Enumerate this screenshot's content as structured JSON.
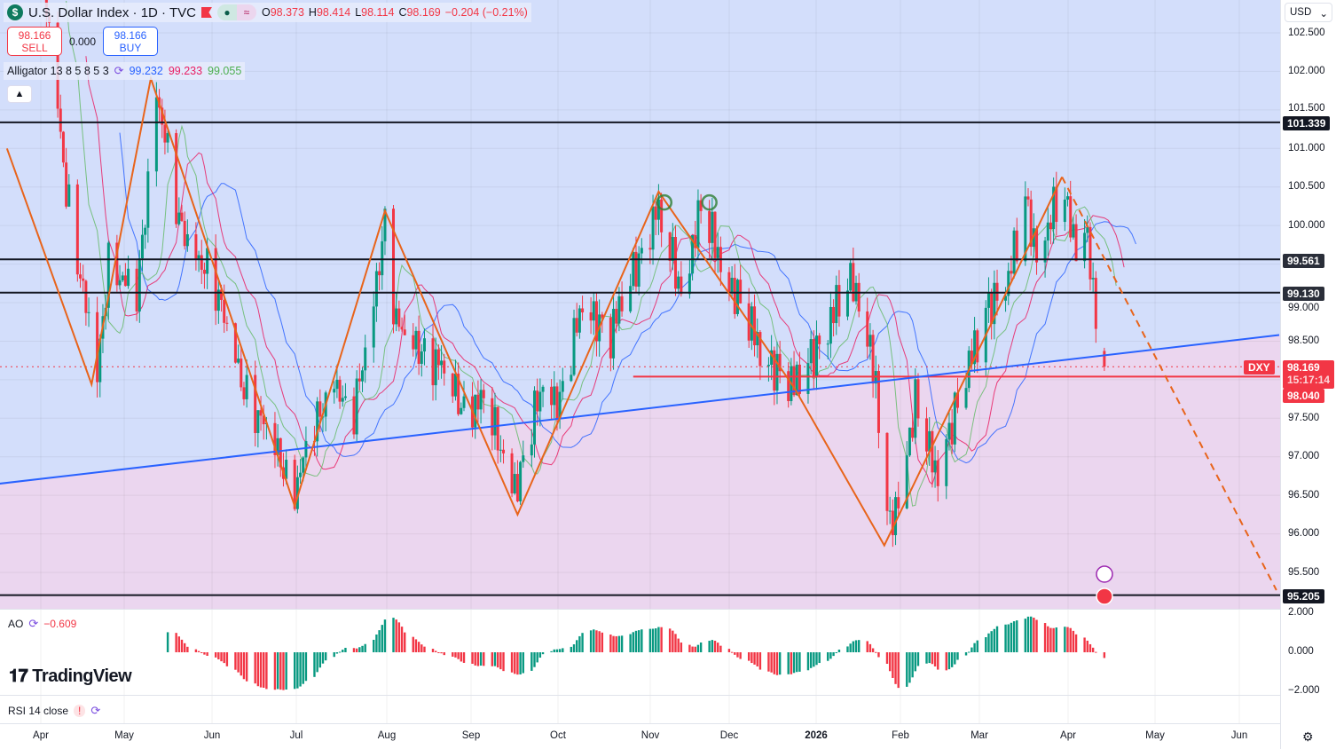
{
  "header": {
    "symbol_icon": "dollar-icon",
    "title": "U.S. Dollar Index · 1D · TVC",
    "open_label": "O",
    "open": "98.373",
    "high_label": "H",
    "high": "98.414",
    "low_label": "L",
    "low": "98.114",
    "close_label": "C",
    "close": "98.169",
    "change": "−0.204 (−0.21%)"
  },
  "trade": {
    "sell_price": "98.166",
    "sell_label": "SELL",
    "spread": "0.000",
    "buy_price": "98.166",
    "buy_label": "BUY"
  },
  "indicator": {
    "name": "Alligator 13 8 5 8 5 3",
    "jaw": "99.232",
    "teeth": "99.233",
    "lips": "99.055"
  },
  "ao": {
    "name": "AO",
    "value": "−0.609",
    "ticks": [
      "2.000",
      "0.000",
      "−2.000"
    ]
  },
  "rsi": {
    "name": "RSI 14 close",
    "warn": "!"
  },
  "currency": "USD",
  "price_ticks": [
    "102.500",
    "102.000",
    "101.500",
    "101.000",
    "100.500",
    "100.000",
    "99.000",
    "98.500",
    "97.500",
    "97.000",
    "96.500",
    "96.000",
    "95.500"
  ],
  "price_labels": {
    "l1": "101.339",
    "l2": "99.561",
    "l3": "99.130",
    "last": "98.169",
    "countdown": "15:17:14",
    "ticker": "DXY",
    "red_level": "98.040",
    "l4": "95.205"
  },
  "time_labels": [
    "Apr",
    "May",
    "Jun",
    "Jul",
    "Aug",
    "Sep",
    "Oct",
    "Nov",
    "Dec",
    "2026",
    "Feb",
    "Mar",
    "Apr",
    "May",
    "Jun"
  ],
  "brand": "TradingView",
  "colors": {
    "up": "#089981",
    "down": "#f23645",
    "jaw": "#2962ff",
    "teeth": "#e91e63",
    "lips": "#66bb6a",
    "zigzag": "#e8641b",
    "bg_top": "#d3defb",
    "bg_bottom": "#ebd6ef"
  },
  "chart_data": {
    "type": "candlestick",
    "title": "U.S. Dollar Index · 1D · TVC",
    "ylim": [
      95.1,
      103.0
    ],
    "price_path": [
      [
        "2025-04-01",
        103.5
      ],
      [
        "2025-04-10",
        100.5
      ],
      [
        "2025-04-21",
        98.0
      ],
      [
        "2025-04-25",
        99.6
      ],
      [
        "2025-05-05",
        99.0
      ],
      [
        "2025-05-12",
        101.8
      ],
      [
        "2025-05-20",
        100.0
      ],
      [
        "2025-06-01",
        99.3
      ],
      [
        "2025-06-12",
        97.9
      ],
      [
        "2025-06-30",
        96.6
      ],
      [
        "2025-07-14",
        98.1
      ],
      [
        "2025-07-20",
        97.3
      ],
      [
        "2025-08-01",
        100.0
      ],
      [
        "2025-08-05",
        98.7
      ],
      [
        "2025-08-20",
        98.2
      ],
      [
        "2025-08-28",
        97.7
      ],
      [
        "2025-09-05",
        97.7
      ],
      [
        "2025-09-17",
        96.6
      ],
      [
        "2025-09-26",
        98.0
      ],
      [
        "2025-10-02",
        97.7
      ],
      [
        "2025-10-10",
        99.0
      ],
      [
        "2025-10-20",
        98.6
      ],
      [
        "2025-11-05",
        100.2
      ],
      [
        "2025-11-14",
        99.2
      ],
      [
        "2025-11-21",
        100.2
      ],
      [
        "2025-12-01",
        99.3
      ],
      [
        "2025-12-12",
        98.4
      ],
      [
        "2025-12-24",
        97.9
      ],
      [
        "2026-01-09",
        99.0
      ],
      [
        "2026-01-14",
        99.3
      ],
      [
        "2026-01-20",
        98.5
      ],
      [
        "2026-01-27",
        96.0
      ],
      [
        "2026-02-05",
        97.7
      ],
      [
        "2026-02-12",
        96.8
      ],
      [
        "2026-02-20",
        97.7
      ],
      [
        "2026-03-03",
        99.0
      ],
      [
        "2026-03-10",
        99.3
      ],
      [
        "2026-03-16",
        100.3
      ],
      [
        "2026-03-20",
        99.7
      ],
      [
        "2026-03-29",
        100.4
      ],
      [
        "2026-04-03",
        99.8
      ],
      [
        "2026-04-07",
        100.0
      ],
      [
        "2026-04-09",
        99.0
      ],
      [
        "2026-04-13",
        98.17
      ]
    ],
    "last_bar": {
      "open": 98.373,
      "high": 98.414,
      "low": 98.114,
      "close": 98.169
    },
    "zigzag": [
      [
        "2025-03-20",
        101.0
      ],
      [
        "2025-04-19",
        97.94
      ],
      [
        "2025-05-10",
        101.91
      ],
      [
        "2025-06-30",
        96.36
      ],
      [
        "2025-08-01",
        100.19
      ],
      [
        "2025-09-17",
        96.25
      ],
      [
        "2025-11-06",
        100.44
      ],
      [
        "2025-12-24",
        97.9
      ],
      [
        "2026-01-25",
        95.85
      ],
      [
        "2026-03-29",
        100.63
      ]
    ],
    "projection": [
      [
        "2026-03-29",
        100.63
      ],
      [
        "2026-06-13",
        95.27
      ]
    ],
    "trendline": [
      [
        "2025-03-17",
        96.65
      ],
      [
        "2026-06-14",
        98.58
      ]
    ],
    "levels": [
      101.339,
      99.561,
      99.13,
      95.205
    ],
    "red_level": {
      "from": "2025-10-28",
      "price": 98.04
    },
    "current_price": 98.169,
    "markers": [
      [
        "2025-11-08",
        100.3
      ],
      [
        "2025-11-24",
        100.3
      ]
    ]
  }
}
